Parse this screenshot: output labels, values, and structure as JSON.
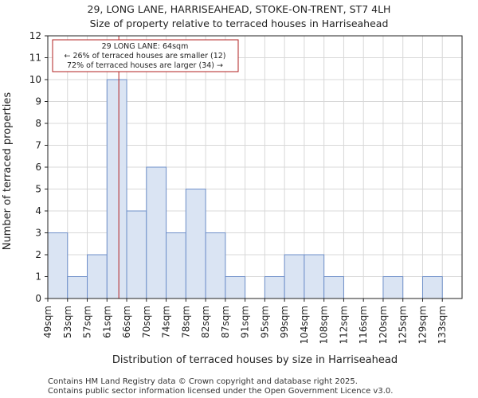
{
  "chart_data": {
    "type": "bar",
    "title": "29, LONG LANE, HARRISEAHEAD, STOKE-ON-TRENT, ST7 4LH",
    "subtitle": "Size of property relative to terraced houses in Harriseahead",
    "xlabel": "Distribution of terraced houses by size in Harriseahead",
    "ylabel": "Number of terraced properties",
    "categories": [
      "49sqm",
      "53sqm",
      "57sqm",
      "61sqm",
      "66sqm",
      "70sqm",
      "74sqm",
      "78sqm",
      "82sqm",
      "87sqm",
      "91sqm",
      "95sqm",
      "99sqm",
      "104sqm",
      "108sqm",
      "112sqm",
      "116sqm",
      "120sqm",
      "125sqm",
      "129sqm",
      "133sqm"
    ],
    "values": [
      3,
      1,
      2,
      10,
      4,
      6,
      3,
      5,
      3,
      1,
      0,
      1,
      2,
      2,
      1,
      0,
      0,
      1,
      0,
      1,
      0
    ],
    "ylim": [
      0,
      12
    ],
    "yticks": [
      0,
      1,
      2,
      3,
      4,
      5,
      6,
      7,
      8,
      9,
      10,
      11,
      12
    ],
    "grid": true,
    "bar_color": "#dae4f3",
    "bar_edge_color": "#6e8fc9",
    "marker": {
      "value_bin_position": 3.6,
      "color": "#b22222"
    },
    "annotation": {
      "line1": "29 LONG LANE: 64sqm",
      "line2": "← 26% of terraced houses are smaller (12)",
      "line3": "72% of terraced houses are larger (34) →"
    }
  },
  "footer": {
    "line1": "Contains HM Land Registry data © Crown copyright and database right 2025.",
    "line2": "Contains public sector information licensed under the Open Government Licence v3.0."
  }
}
